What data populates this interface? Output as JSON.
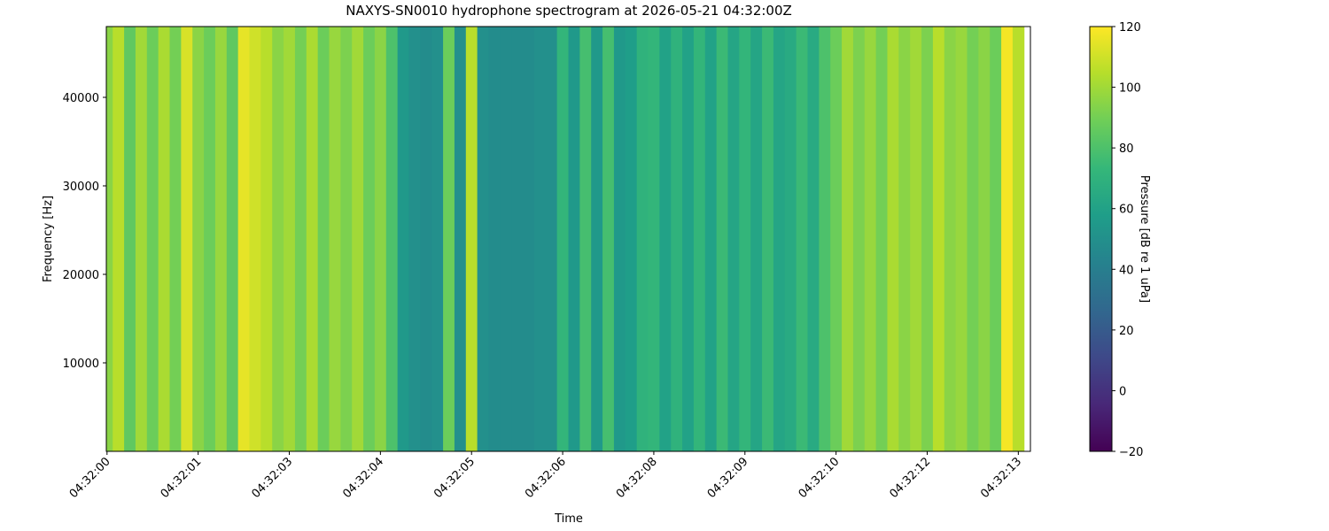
{
  "chart_data": {
    "type": "spectrogram",
    "title": "NAXYS-SN0010 hydrophone spectrogram at 2026-05-21 04:32:00Z",
    "x_label": "Time",
    "y_label": "Frequency [Hz]",
    "colorbar_label": "Pressure [dB re 1 uPa]",
    "colormap": "viridis",
    "x": [
      0,
      0.16,
      0.32,
      0.48,
      0.64,
      0.8,
      0.96,
      1.12,
      1.28,
      1.44,
      1.6,
      1.76,
      1.92,
      2.08,
      2.24,
      2.4,
      2.56,
      2.72,
      2.88,
      3.04,
      3.2,
      3.36,
      3.52,
      3.68,
      3.84,
      4,
      4.16,
      4.32,
      4.48,
      4.64,
      4.8,
      4.96,
      5.12,
      5.28,
      5.44,
      5.6,
      5.76,
      5.92,
      6.08,
      6.24,
      6.4,
      6.56,
      6.72,
      6.88,
      7.04,
      7.2,
      7.36,
      7.52,
      7.68,
      7.84,
      8,
      8.16,
      8.32,
      8.48,
      8.64,
      8.8,
      8.96,
      9.12,
      9.28,
      9.44,
      9.6,
      9.76,
      9.92,
      10.08,
      10.24,
      10.4,
      10.56,
      10.72,
      10.88,
      11.04,
      11.2,
      11.36,
      11.52,
      11.68,
      11.84,
      12,
      12.16,
      12.32,
      12.48,
      12.64,
      12.8
    ],
    "values": [
      95,
      105,
      85,
      100,
      88,
      102,
      90,
      112,
      95,
      88,
      98,
      85,
      115,
      110,
      105,
      95,
      100,
      90,
      102,
      88,
      98,
      92,
      100,
      88,
      95,
      80,
      55,
      50,
      48,
      50,
      88,
      50,
      105,
      50,
      48,
      48,
      48,
      48,
      50,
      50,
      72,
      55,
      78,
      55,
      78,
      55,
      58,
      70,
      72,
      60,
      70,
      60,
      72,
      60,
      75,
      62,
      72,
      62,
      75,
      62,
      65,
      75,
      65,
      80,
      88,
      100,
      92,
      98,
      90,
      102,
      95,
      100,
      92,
      105,
      95,
      98,
      90,
      95,
      88,
      118,
      105
    ],
    "xlim": [
      -0.01,
      12.97
    ],
    "xticks": [
      {
        "value": 0,
        "label": "04:32:00"
      },
      {
        "value": 1.28,
        "label": "04:32:01"
      },
      {
        "value": 2.56,
        "label": "04:32:03"
      },
      {
        "value": 3.84,
        "label": "04:32:04"
      },
      {
        "value": 5.12,
        "label": "04:32:05"
      },
      {
        "value": 6.4,
        "label": "04:32:06"
      },
      {
        "value": 7.68,
        "label": "04:32:08"
      },
      {
        "value": 8.96,
        "label": "04:32:09"
      },
      {
        "value": 10.24,
        "label": "04:32:10"
      },
      {
        "value": 11.52,
        "label": "04:32:12"
      },
      {
        "value": 12.8,
        "label": "04:32:13"
      }
    ],
    "ylim": [
      0,
      48000
    ],
    "yticks": [
      10000,
      20000,
      30000,
      40000
    ],
    "clim": [
      -20,
      120
    ],
    "cticks": [
      {
        "value": -20,
        "label": "−20"
      },
      0,
      20,
      40,
      60,
      80,
      100,
      120
    ]
  }
}
